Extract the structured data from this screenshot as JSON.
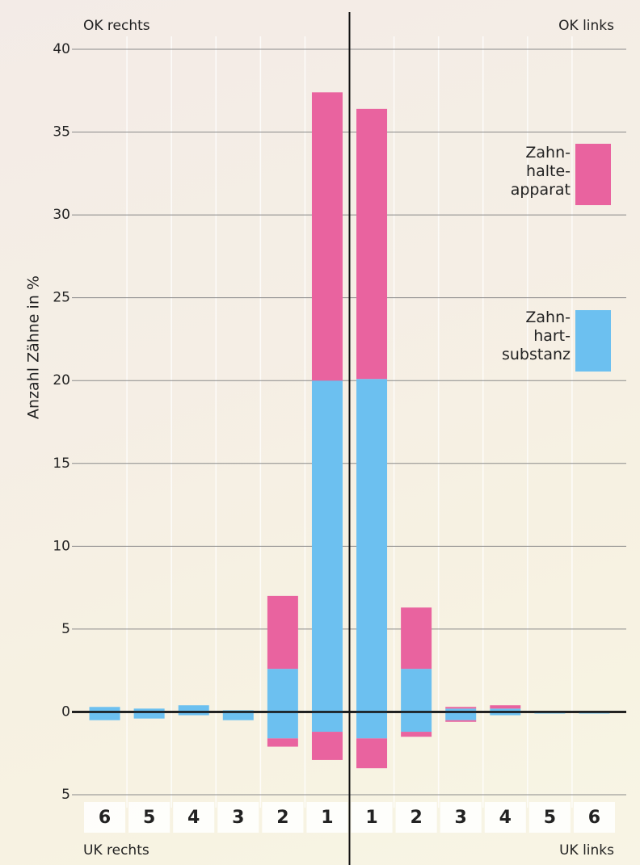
{
  "chart_data": {
    "type": "bar",
    "stacked": true,
    "y_label": "Anzahl Zähne in %",
    "corner_labels": {
      "top_left": "OK rechts",
      "top_right": "OK links",
      "bottom_left": "UK rechts",
      "bottom_right": "UK links"
    },
    "categories": [
      "6",
      "5",
      "4",
      "3",
      "2",
      "1",
      "1",
      "2",
      "3",
      "4",
      "5",
      "6"
    ],
    "series": [
      {
        "name": "Zahn-\nhart-\nsubstanz",
        "color": "#6cc0f0",
        "values": [
          0.3,
          0.2,
          0.4,
          0.1,
          2.6,
          20,
          20.1,
          2.6,
          0.2,
          0.2,
          0,
          0
        ],
        "values_uk": [
          -0.5,
          -0.4,
          -0.2,
          -0.5,
          -1.6,
          -1.2,
          -1.6,
          -1.2,
          -0.5,
          -0.2,
          -0.1,
          -0.1
        ]
      },
      {
        "name": "Zahn-\nhalte-\napparat",
        "color": "#e9639f",
        "values": [
          0,
          0,
          0,
          0,
          4.4,
          17.4,
          16.3,
          3.7,
          0.1,
          0.2,
          0,
          0
        ],
        "values_uk": [
          0,
          0,
          0,
          0,
          -0.5,
          -1.7,
          -1.8,
          -0.3,
          -0.1,
          0,
          0,
          0
        ]
      }
    ],
    "ylim": [
      -5,
      40
    ],
    "yticks": [
      {
        "value": -5,
        "label": "5"
      },
      0,
      5,
      10,
      15,
      20,
      25,
      30,
      35,
      40
    ],
    "grid": true
  }
}
